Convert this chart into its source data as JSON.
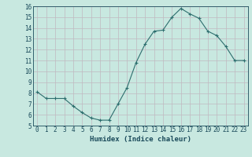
{
  "x": [
    0,
    1,
    2,
    3,
    4,
    5,
    6,
    7,
    8,
    9,
    10,
    11,
    12,
    13,
    14,
    15,
    16,
    17,
    18,
    19,
    20,
    21,
    22,
    23
  ],
  "y": [
    8.1,
    7.5,
    7.5,
    7.5,
    6.8,
    6.2,
    5.7,
    5.5,
    5.5,
    7.0,
    8.5,
    10.8,
    12.5,
    13.7,
    13.8,
    15.0,
    15.8,
    15.3,
    14.9,
    13.7,
    13.3,
    12.3,
    11.0,
    11.0
  ],
  "line_color": "#2d6e6e",
  "marker": "+",
  "marker_size": 3,
  "xlabel": "Humidex (Indice chaleur)",
  "xlim": [
    -0.5,
    23.5
  ],
  "ylim": [
    5,
    16
  ],
  "yticks": [
    5,
    6,
    7,
    8,
    9,
    10,
    11,
    12,
    13,
    14,
    15,
    16
  ],
  "xticks": [
    0,
    1,
    2,
    3,
    4,
    5,
    6,
    7,
    8,
    9,
    10,
    11,
    12,
    13,
    14,
    15,
    16,
    17,
    18,
    19,
    20,
    21,
    22,
    23
  ],
  "bg_color": "#c8e8e0",
  "grid_color": "#c0b8c0",
  "label_color": "#1a4a5a",
  "tick_fontsize": 5.5,
  "xlabel_fontsize": 6.5
}
